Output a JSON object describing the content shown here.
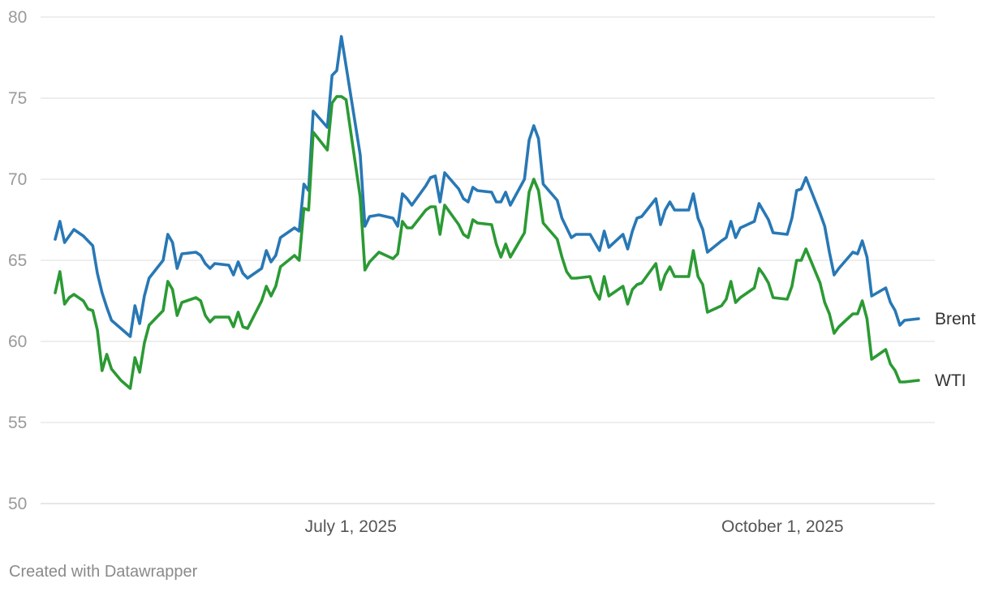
{
  "credit": "Created with Datawrapper",
  "chart_data": {
    "type": "line",
    "title": "",
    "xlabel": "",
    "ylabel": "",
    "ylim": [
      50,
      80
    ],
    "yticks": [
      50,
      55,
      60,
      65,
      70,
      75,
      80
    ],
    "xlim": [
      "2025-04-28",
      "2025-10-31"
    ],
    "xticks": [
      {
        "date": "2025-07-01",
        "label": "July 1, 2025"
      },
      {
        "date": "2025-10-01",
        "label": "October 1, 2025"
      }
    ],
    "grid": true,
    "legend": "inline-right",
    "series": [
      {
        "name": "Brent",
        "color": "#2878b5",
        "points": [
          [
            "2025-04-29",
            66.3
          ],
          [
            "2025-04-30",
            67.4
          ],
          [
            "2025-05-01",
            66.1
          ],
          [
            "2025-05-02",
            66.5
          ],
          [
            "2025-05-03",
            66.9
          ],
          [
            "2025-05-05",
            66.5
          ],
          [
            "2025-05-06",
            66.2
          ],
          [
            "2025-05-07",
            65.9
          ],
          [
            "2025-05-08",
            64.2
          ],
          [
            "2025-05-09",
            63.0
          ],
          [
            "2025-05-10",
            62.1
          ],
          [
            "2025-05-11",
            61.3
          ],
          [
            "2025-05-13",
            60.8
          ],
          [
            "2025-05-15",
            60.3
          ],
          [
            "2025-05-16",
            62.2
          ],
          [
            "2025-05-17",
            61.1
          ],
          [
            "2025-05-18",
            62.8
          ],
          [
            "2025-05-19",
            63.9
          ],
          [
            "2025-05-22",
            65.0
          ],
          [
            "2025-05-23",
            66.6
          ],
          [
            "2025-05-24",
            66.1
          ],
          [
            "2025-05-25",
            64.5
          ],
          [
            "2025-05-26",
            65.4
          ],
          [
            "2025-05-29",
            65.5
          ],
          [
            "2025-05-30",
            65.3
          ],
          [
            "2025-05-31",
            64.8
          ],
          [
            "2025-06-01",
            64.5
          ],
          [
            "2025-06-02",
            64.8
          ],
          [
            "2025-06-05",
            64.7
          ],
          [
            "2025-06-06",
            64.1
          ],
          [
            "2025-06-07",
            64.9
          ],
          [
            "2025-06-08",
            64.2
          ],
          [
            "2025-06-09",
            63.9
          ],
          [
            "2025-06-12",
            64.5
          ],
          [
            "2025-06-13",
            65.6
          ],
          [
            "2025-06-14",
            64.9
          ],
          [
            "2025-06-15",
            65.3
          ],
          [
            "2025-06-16",
            66.4
          ],
          [
            "2025-06-19",
            67.0
          ],
          [
            "2025-06-20",
            66.8
          ],
          [
            "2025-06-21",
            69.7
          ],
          [
            "2025-06-22",
            69.3
          ],
          [
            "2025-06-23",
            74.2
          ],
          [
            "2025-06-26",
            73.2
          ],
          [
            "2025-06-27",
            76.4
          ],
          [
            "2025-06-28",
            76.7
          ],
          [
            "2025-06-29",
            78.8
          ],
          [
            "2025-07-03",
            71.5
          ],
          [
            "2025-07-04",
            67.1
          ],
          [
            "2025-07-05",
            67.7
          ],
          [
            "2025-07-07",
            67.8
          ],
          [
            "2025-07-10",
            67.6
          ],
          [
            "2025-07-11",
            67.1
          ],
          [
            "2025-07-12",
            69.1
          ],
          [
            "2025-07-13",
            68.8
          ],
          [
            "2025-07-14",
            68.4
          ],
          [
            "2025-07-17",
            69.6
          ],
          [
            "2025-07-18",
            70.1
          ],
          [
            "2025-07-19",
            70.2
          ],
          [
            "2025-07-20",
            68.6
          ],
          [
            "2025-07-21",
            70.4
          ],
          [
            "2025-07-24",
            69.4
          ],
          [
            "2025-07-25",
            68.8
          ],
          [
            "2025-07-26",
            68.6
          ],
          [
            "2025-07-27",
            69.5
          ],
          [
            "2025-07-28",
            69.3
          ],
          [
            "2025-07-31",
            69.2
          ],
          [
            "2025-08-01",
            68.6
          ],
          [
            "2025-08-02",
            68.6
          ],
          [
            "2025-08-03",
            69.2
          ],
          [
            "2025-08-04",
            68.4
          ],
          [
            "2025-08-07",
            70.0
          ],
          [
            "2025-08-08",
            72.4
          ],
          [
            "2025-08-09",
            73.3
          ],
          [
            "2025-08-10",
            72.5
          ],
          [
            "2025-08-11",
            69.7
          ],
          [
            "2025-08-14",
            68.7
          ],
          [
            "2025-08-15",
            67.6
          ],
          [
            "2025-08-16",
            67.0
          ],
          [
            "2025-08-17",
            66.4
          ],
          [
            "2025-08-18",
            66.6
          ],
          [
            "2025-08-21",
            66.6
          ],
          [
            "2025-08-22",
            66.1
          ],
          [
            "2025-08-23",
            65.6
          ],
          [
            "2025-08-24",
            66.8
          ],
          [
            "2025-08-25",
            65.8
          ],
          [
            "2025-08-28",
            66.6
          ],
          [
            "2025-08-29",
            65.7
          ],
          [
            "2025-08-30",
            66.8
          ],
          [
            "2025-08-31",
            67.6
          ],
          [
            "2025-09-01",
            67.7
          ],
          [
            "2025-09-04",
            68.8
          ],
          [
            "2025-09-05",
            67.2
          ],
          [
            "2025-09-06",
            68.1
          ],
          [
            "2025-09-07",
            68.6
          ],
          [
            "2025-09-08",
            68.1
          ],
          [
            "2025-09-11",
            68.1
          ],
          [
            "2025-09-12",
            69.1
          ],
          [
            "2025-09-13",
            67.6
          ],
          [
            "2025-09-14",
            66.9
          ],
          [
            "2025-09-15",
            65.5
          ],
          [
            "2025-09-18",
            66.2
          ],
          [
            "2025-09-19",
            66.4
          ],
          [
            "2025-09-20",
            67.4
          ],
          [
            "2025-09-21",
            66.4
          ],
          [
            "2025-09-22",
            67.0
          ],
          [
            "2025-09-25",
            67.4
          ],
          [
            "2025-09-26",
            68.5
          ],
          [
            "2025-09-27",
            68.0
          ],
          [
            "2025-09-28",
            67.5
          ],
          [
            "2025-09-29",
            66.7
          ],
          [
            "2025-10-02",
            66.6
          ],
          [
            "2025-10-03",
            67.6
          ],
          [
            "2025-10-04",
            69.3
          ],
          [
            "2025-10-05",
            69.4
          ],
          [
            "2025-10-06",
            70.1
          ],
          [
            "2025-10-09",
            67.9
          ],
          [
            "2025-10-10",
            67.1
          ],
          [
            "2025-10-11",
            65.5
          ],
          [
            "2025-10-12",
            64.1
          ],
          [
            "2025-10-13",
            64.5
          ],
          [
            "2025-10-16",
            65.5
          ],
          [
            "2025-10-17",
            65.4
          ],
          [
            "2025-10-18",
            66.2
          ],
          [
            "2025-10-19",
            65.2
          ],
          [
            "2025-10-20",
            62.8
          ],
          [
            "2025-10-23",
            63.3
          ],
          [
            "2025-10-24",
            62.4
          ],
          [
            "2025-10-25",
            61.9
          ],
          [
            "2025-10-26",
            61.0
          ],
          [
            "2025-10-27",
            61.3
          ],
          [
            "2025-10-30",
            61.4
          ]
        ]
      },
      {
        "name": "WTI",
        "color": "#2b9a34",
        "points": [
          [
            "2025-04-29",
            63.0
          ],
          [
            "2025-04-30",
            64.3
          ],
          [
            "2025-05-01",
            62.3
          ],
          [
            "2025-05-02",
            62.7
          ],
          [
            "2025-05-03",
            62.9
          ],
          [
            "2025-05-05",
            62.5
          ],
          [
            "2025-05-06",
            62.0
          ],
          [
            "2025-05-07",
            61.9
          ],
          [
            "2025-05-08",
            60.7
          ],
          [
            "2025-05-09",
            58.2
          ],
          [
            "2025-05-10",
            59.2
          ],
          [
            "2025-05-11",
            58.3
          ],
          [
            "2025-05-13",
            57.6
          ],
          [
            "2025-05-15",
            57.1
          ],
          [
            "2025-05-16",
            59.0
          ],
          [
            "2025-05-17",
            58.1
          ],
          [
            "2025-05-18",
            59.9
          ],
          [
            "2025-05-19",
            61.0
          ],
          [
            "2025-05-22",
            61.9
          ],
          [
            "2025-05-23",
            63.7
          ],
          [
            "2025-05-24",
            63.2
          ],
          [
            "2025-05-25",
            61.6
          ],
          [
            "2025-05-26",
            62.4
          ],
          [
            "2025-05-29",
            62.7
          ],
          [
            "2025-05-30",
            62.5
          ],
          [
            "2025-05-31",
            61.6
          ],
          [
            "2025-06-01",
            61.2
          ],
          [
            "2025-06-02",
            61.5
          ],
          [
            "2025-06-05",
            61.5
          ],
          [
            "2025-06-06",
            60.9
          ],
          [
            "2025-06-07",
            61.8
          ],
          [
            "2025-06-08",
            60.9
          ],
          [
            "2025-06-09",
            60.8
          ],
          [
            "2025-06-12",
            62.5
          ],
          [
            "2025-06-13",
            63.4
          ],
          [
            "2025-06-14",
            62.8
          ],
          [
            "2025-06-15",
            63.4
          ],
          [
            "2025-06-16",
            64.6
          ],
          [
            "2025-06-19",
            65.3
          ],
          [
            "2025-06-20",
            65.0
          ],
          [
            "2025-06-21",
            68.2
          ],
          [
            "2025-06-22",
            68.1
          ],
          [
            "2025-06-23",
            72.9
          ],
          [
            "2025-06-26",
            71.8
          ],
          [
            "2025-06-27",
            74.7
          ],
          [
            "2025-06-28",
            75.1
          ],
          [
            "2025-06-29",
            75.1
          ],
          [
            "2025-06-30",
            74.9
          ],
          [
            "2025-07-03",
            68.9
          ],
          [
            "2025-07-04",
            64.4
          ],
          [
            "2025-07-05",
            64.9
          ],
          [
            "2025-07-07",
            65.5
          ],
          [
            "2025-07-10",
            65.1
          ],
          [
            "2025-07-11",
            65.4
          ],
          [
            "2025-07-12",
            67.4
          ],
          [
            "2025-07-13",
            67.0
          ],
          [
            "2025-07-14",
            67.0
          ],
          [
            "2025-07-17",
            68.1
          ],
          [
            "2025-07-18",
            68.3
          ],
          [
            "2025-07-19",
            68.3
          ],
          [
            "2025-07-20",
            66.6
          ],
          [
            "2025-07-21",
            68.4
          ],
          [
            "2025-07-24",
            67.2
          ],
          [
            "2025-07-25",
            66.6
          ],
          [
            "2025-07-26",
            66.4
          ],
          [
            "2025-07-27",
            67.5
          ],
          [
            "2025-07-28",
            67.3
          ],
          [
            "2025-07-31",
            67.2
          ],
          [
            "2025-08-01",
            66.0
          ],
          [
            "2025-08-02",
            65.2
          ],
          [
            "2025-08-03",
            66.0
          ],
          [
            "2025-08-04",
            65.2
          ],
          [
            "2025-08-07",
            66.7
          ],
          [
            "2025-08-08",
            69.2
          ],
          [
            "2025-08-09",
            70.0
          ],
          [
            "2025-08-10",
            69.3
          ],
          [
            "2025-08-11",
            67.3
          ],
          [
            "2025-08-14",
            66.3
          ],
          [
            "2025-08-15",
            65.2
          ],
          [
            "2025-08-16",
            64.3
          ],
          [
            "2025-08-17",
            63.9
          ],
          [
            "2025-08-18",
            63.9
          ],
          [
            "2025-08-21",
            64.0
          ],
          [
            "2025-08-22",
            63.1
          ],
          [
            "2025-08-23",
            62.6
          ],
          [
            "2025-08-24",
            64.0
          ],
          [
            "2025-08-25",
            62.8
          ],
          [
            "2025-08-28",
            63.4
          ],
          [
            "2025-08-29",
            62.3
          ],
          [
            "2025-08-30",
            63.2
          ],
          [
            "2025-08-31",
            63.5
          ],
          [
            "2025-09-01",
            63.6
          ],
          [
            "2025-09-04",
            64.8
          ],
          [
            "2025-09-05",
            63.2
          ],
          [
            "2025-09-06",
            64.1
          ],
          [
            "2025-09-07",
            64.6
          ],
          [
            "2025-09-08",
            64.0
          ],
          [
            "2025-09-11",
            64.0
          ],
          [
            "2025-09-12",
            65.6
          ],
          [
            "2025-09-13",
            64.0
          ],
          [
            "2025-09-14",
            63.5
          ],
          [
            "2025-09-15",
            61.8
          ],
          [
            "2025-09-18",
            62.2
          ],
          [
            "2025-09-19",
            62.6
          ],
          [
            "2025-09-20",
            63.7
          ],
          [
            "2025-09-21",
            62.4
          ],
          [
            "2025-09-22",
            62.7
          ],
          [
            "2025-09-25",
            63.3
          ],
          [
            "2025-09-26",
            64.5
          ],
          [
            "2025-09-27",
            64.1
          ],
          [
            "2025-09-28",
            63.6
          ],
          [
            "2025-09-29",
            62.7
          ],
          [
            "2025-10-02",
            62.6
          ],
          [
            "2025-10-03",
            63.4
          ],
          [
            "2025-10-04",
            65.0
          ],
          [
            "2025-10-05",
            65.0
          ],
          [
            "2025-10-06",
            65.7
          ],
          [
            "2025-10-09",
            63.6
          ],
          [
            "2025-10-10",
            62.4
          ],
          [
            "2025-10-11",
            61.7
          ],
          [
            "2025-10-12",
            60.5
          ],
          [
            "2025-10-13",
            60.9
          ],
          [
            "2025-10-16",
            61.7
          ],
          [
            "2025-10-17",
            61.7
          ],
          [
            "2025-10-18",
            62.5
          ],
          [
            "2025-10-19",
            61.4
          ],
          [
            "2025-10-20",
            58.9
          ],
          [
            "2025-10-23",
            59.5
          ],
          [
            "2025-10-24",
            58.6
          ],
          [
            "2025-10-25",
            58.2
          ],
          [
            "2025-10-26",
            57.5
          ],
          [
            "2025-10-27",
            57.5
          ],
          [
            "2025-10-30",
            57.6
          ]
        ]
      }
    ]
  }
}
